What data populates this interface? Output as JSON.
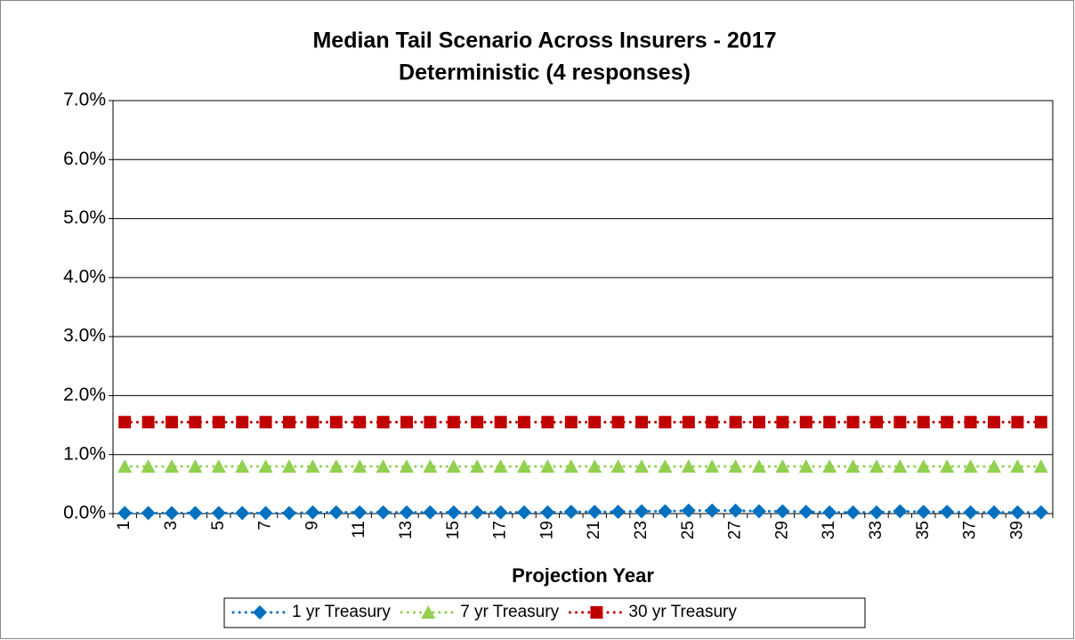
{
  "chart_data": {
    "type": "line",
    "title": "Median Tail Scenario Across Insurers - 2017",
    "subtitle": "Deterministic (4 responses)",
    "x_label": "Projection Year",
    "categories": [
      "1",
      null,
      "3",
      null,
      "5",
      null,
      "7",
      null,
      "9",
      null,
      "11",
      null,
      "13",
      null,
      "15",
      null,
      "17",
      null,
      "19",
      null,
      "21",
      null,
      "23",
      null,
      "25",
      null,
      "27",
      null,
      "29",
      null,
      "31",
      null,
      "33",
      null,
      "35",
      null,
      "37",
      null,
      "39",
      null
    ],
    "series": [
      {
        "name": "1 yr Treasury",
        "color": "#0070c0",
        "marker": "diamond",
        "values": [
          0.01,
          0.01,
          0.01,
          0.01,
          0.01,
          0.01,
          0.01,
          0.01,
          0.02,
          0.02,
          0.02,
          0.02,
          0.02,
          0.02,
          0.02,
          0.02,
          0.02,
          0.02,
          0.02,
          0.03,
          0.03,
          0.03,
          0.04,
          0.04,
          0.05,
          0.05,
          0.05,
          0.04,
          0.04,
          0.03,
          0.02,
          0.02,
          0.02,
          0.04,
          0.03,
          0.03,
          0.02,
          0.02,
          0.02,
          0.02
        ]
      },
      {
        "name": "7 yr Treasury",
        "color": "#92d050",
        "marker": "triangle",
        "values": [
          0.8,
          0.8,
          0.8,
          0.8,
          0.8,
          0.8,
          0.8,
          0.8,
          0.8,
          0.8,
          0.8,
          0.8,
          0.8,
          0.8,
          0.8,
          0.8,
          0.8,
          0.8,
          0.8,
          0.8,
          0.8,
          0.8,
          0.8,
          0.8,
          0.8,
          0.8,
          0.8,
          0.8,
          0.8,
          0.8,
          0.8,
          0.8,
          0.8,
          0.8,
          0.8,
          0.8,
          0.8,
          0.8,
          0.8,
          0.8
        ]
      },
      {
        "name": "30 yr Treasury",
        "color": "#c00000",
        "marker": "square",
        "values": [
          1.55,
          1.55,
          1.55,
          1.55,
          1.55,
          1.55,
          1.55,
          1.55,
          1.55,
          1.55,
          1.55,
          1.55,
          1.55,
          1.55,
          1.55,
          1.55,
          1.55,
          1.55,
          1.55,
          1.55,
          1.55,
          1.55,
          1.55,
          1.55,
          1.55,
          1.55,
          1.55,
          1.55,
          1.55,
          1.55,
          1.55,
          1.55,
          1.55,
          1.55,
          1.55,
          1.55,
          1.55,
          1.55,
          1.55,
          1.55
        ]
      }
    ],
    "ylim": [
      0,
      7
    ],
    "yticks": [
      {
        "value": 0,
        "label": "0.0%"
      },
      {
        "value": 1,
        "label": "1.0%"
      },
      {
        "value": 2,
        "label": "2.0%"
      },
      {
        "value": 3,
        "label": "3.0%"
      },
      {
        "value": 4,
        "label": "4.0%"
      },
      {
        "value": 5,
        "label": "5.0%"
      },
      {
        "value": 6,
        "label": "6.0%"
      },
      {
        "value": 7,
        "label": "7.0%"
      }
    ],
    "grid": true,
    "legend": "bottom"
  }
}
